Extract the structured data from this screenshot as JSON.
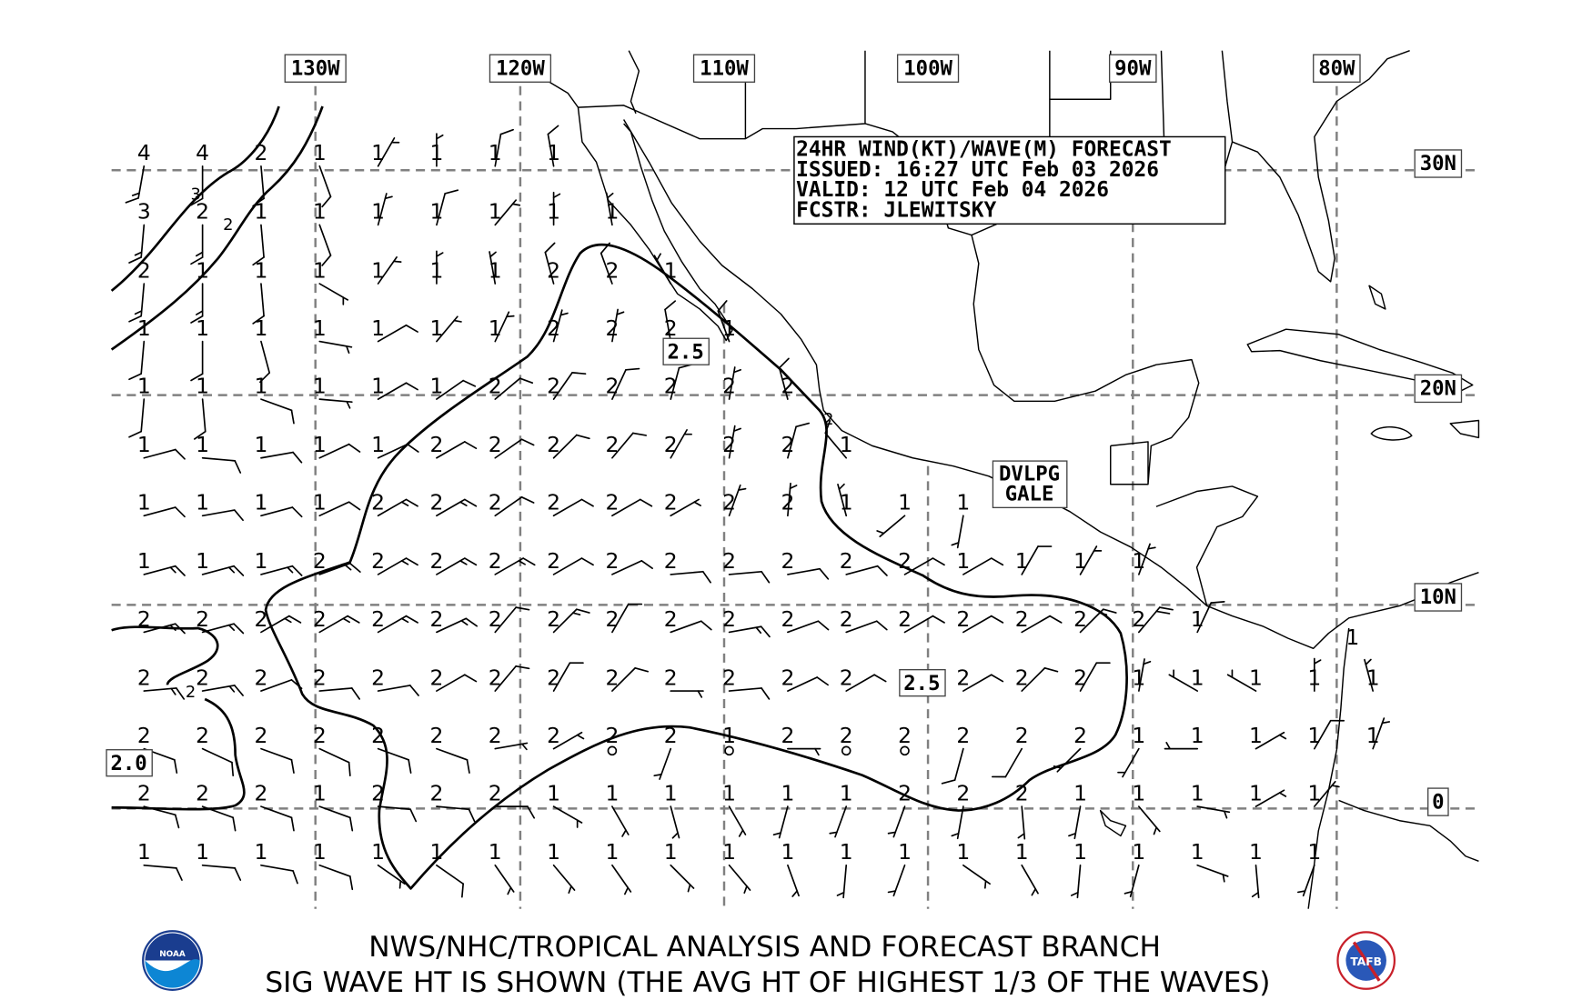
{
  "header": {
    "line1": "24HR WIND(KT)/WAVE(M) FORECAST",
    "line2": "ISSUED: 16:27 UTC Feb 03 2026",
    "line3": "VALID: 12 UTC Feb 04 2026",
    "line4": "FCSTR: JLEWITSKY"
  },
  "longitude_labels": [
    "130W",
    "120W",
    "110W",
    "100W",
    "90W",
    "80W"
  ],
  "latitude_labels": [
    "30N",
    "20N",
    "10N",
    "0"
  ],
  "contour_labels": {
    "north": "2.5",
    "central": "2.5",
    "west": "2.0",
    "small": [
      "3",
      "2",
      "2",
      "2"
    ]
  },
  "warning_label": {
    "line1": "DVLPG",
    "line2": "GALE"
  },
  "footer": {
    "line1": "NWS/NHC/TROPICAL ANALYSIS AND FORECAST BRANCH",
    "line2": "SIG WAVE HT IS SHOWN (THE AVG HT OF HIGHEST 1/3 OF THE WAVES)"
  },
  "logos": {
    "left": "NOAA",
    "right": "TAFB"
  },
  "wave_grid": {
    "unit": "m",
    "rows": [
      [
        4,
        4,
        2,
        1,
        1,
        1,
        1,
        1
      ],
      [
        3,
        2,
        1,
        1,
        1,
        1,
        1,
        1,
        1
      ],
      [
        2,
        1,
        1,
        1,
        1,
        1,
        1,
        2,
        2,
        1
      ],
      [
        1,
        1,
        1,
        1,
        1,
        1,
        1,
        2,
        2,
        2,
        1
      ],
      [
        1,
        1,
        1,
        1,
        1,
        1,
        2,
        2,
        2,
        2,
        2,
        2
      ],
      [
        1,
        1,
        1,
        1,
        1,
        2,
        2,
        2,
        2,
        2,
        2,
        2,
        1
      ],
      [
        1,
        1,
        1,
        1,
        2,
        2,
        2,
        2,
        2,
        2,
        2,
        2,
        1,
        1,
        1
      ],
      [
        1,
        1,
        1,
        2,
        2,
        2,
        2,
        2,
        2,
        2,
        2,
        2,
        2,
        2,
        1,
        1,
        1,
        1
      ],
      [
        2,
        2,
        2,
        2,
        2,
        2,
        2,
        2,
        2,
        2,
        2,
        2,
        2,
        2,
        2,
        2,
        2,
        2,
        1
      ],
      [
        2,
        2,
        2,
        2,
        2,
        2,
        2,
        2,
        2,
        2,
        2,
        2,
        2,
        null,
        2,
        2,
        2,
        1,
        1,
        1,
        1,
        1
      ],
      [
        2,
        2,
        2,
        2,
        2,
        2,
        2,
        2,
        2,
        2,
        1,
        2,
        2,
        2,
        2,
        2,
        2,
        1,
        1,
        1,
        1,
        1
      ],
      [
        2,
        2,
        2,
        1,
        2,
        2,
        2,
        1,
        1,
        1,
        1,
        1,
        1,
        2,
        2,
        2,
        1,
        1,
        1,
        1,
        1
      ],
      [
        1,
        1,
        1,
        1,
        1,
        1,
        1,
        1,
        1,
        1,
        1,
        1,
        1,
        1,
        1,
        1,
        1,
        1,
        1,
        1,
        1
      ]
    ],
    "extra": [
      {
        "value": 1,
        "row": 8,
        "col": 21
      }
    ]
  },
  "wind_grid": {
    "unit": "kt",
    "format": "[direction_from_deg, speed_kt]; speed 0 = calm",
    "rows": [
      [
        [
          190,
          15
        ],
        [
          180,
          15
        ],
        [
          175,
          10
        ],
        [
          160,
          10
        ],
        [
          30,
          5
        ],
        [
          0,
          5
        ],
        [
          10,
          10
        ],
        [
          350,
          10
        ]
      ],
      [
        [
          185,
          15
        ],
        [
          180,
          15
        ],
        [
          175,
          10
        ],
        [
          160,
          10
        ],
        [
          15,
          5
        ],
        [
          15,
          10
        ],
        [
          40,
          5
        ],
        [
          0,
          5
        ],
        [
          350,
          5
        ]
      ],
      [
        [
          185,
          15
        ],
        [
          180,
          15
        ],
        [
          175,
          10
        ],
        [
          120,
          5
        ],
        [
          35,
          5
        ],
        [
          0,
          5
        ],
        [
          350,
          5
        ],
        [
          345,
          10
        ],
        [
          340,
          10
        ],
        [
          330,
          5
        ]
      ],
      [
        [
          185,
          10
        ],
        [
          180,
          10
        ],
        [
          165,
          10
        ],
        [
          100,
          5
        ],
        [
          60,
          10
        ],
        [
          40,
          5
        ],
        [
          25,
          5
        ],
        [
          15,
          5
        ],
        [
          10,
          5
        ],
        [
          350,
          10
        ],
        [
          340,
          10
        ]
      ],
      [
        [
          185,
          10
        ],
        [
          175,
          10
        ],
        [
          110,
          10
        ],
        [
          95,
          5
        ],
        [
          60,
          10
        ],
        [
          55,
          10
        ],
        [
          50,
          10
        ],
        [
          35,
          10
        ],
        [
          25,
          10
        ],
        [
          15,
          10
        ],
        [
          10,
          5
        ],
        [
          345,
          10
        ]
      ],
      [
        [
          75,
          10
        ],
        [
          95,
          10
        ],
        [
          80,
          10
        ],
        [
          65,
          10
        ],
        [
          65,
          10
        ],
        [
          60,
          10
        ],
        [
          55,
          10
        ],
        [
          45,
          10
        ],
        [
          40,
          10
        ],
        [
          30,
          5
        ],
        [
          10,
          5
        ],
        [
          15,
          10
        ],
        [
          320,
          10
        ]
      ],
      [
        [
          75,
          10
        ],
        [
          80,
          10
        ],
        [
          75,
          10
        ],
        [
          65,
          10
        ],
        [
          60,
          15
        ],
        [
          60,
          15
        ],
        [
          55,
          10
        ],
        [
          60,
          10
        ],
        [
          60,
          10
        ],
        [
          60,
          5
        ],
        [
          20,
          5
        ],
        [
          5,
          5
        ],
        [
          345,
          5
        ],
        [
          230,
          5
        ],
        [
          190,
          5
        ]
      ],
      [
        [
          75,
          15
        ],
        [
          75,
          15
        ],
        [
          75,
          15
        ],
        [
          70,
          15
        ],
        [
          60,
          15
        ],
        [
          60,
          15
        ],
        [
          60,
          15
        ],
        [
          60,
          10
        ],
        [
          65,
          10
        ],
        [
          85,
          10
        ],
        [
          85,
          10
        ],
        [
          80,
          10
        ],
        [
          75,
          10
        ],
        [
          60,
          10
        ],
        [
          60,
          10
        ],
        [
          30,
          10
        ],
        [
          30,
          5
        ],
        [
          20,
          5
        ]
      ],
      [
        [
          75,
          15
        ],
        [
          75,
          15
        ],
        [
          60,
          15
        ],
        [
          60,
          15
        ],
        [
          60,
          15
        ],
        [
          65,
          15
        ],
        [
          40,
          10
        ],
        [
          45,
          15
        ],
        [
          30,
          10
        ],
        [
          70,
          10
        ],
        [
          80,
          15
        ],
        [
          70,
          10
        ],
        [
          70,
          10
        ],
        [
          60,
          10
        ],
        [
          60,
          10
        ],
        [
          60,
          10
        ],
        [
          45,
          15
        ],
        [
          40,
          20
        ],
        [
          25,
          10
        ]
      ],
      [
        [
          85,
          15
        ],
        [
          80,
          15
        ],
        [
          70,
          10
        ],
        [
          85,
          10
        ],
        [
          80,
          10
        ],
        [
          60,
          10
        ],
        [
          40,
          10
        ],
        [
          30,
          10
        ],
        [
          45,
          10
        ],
        [
          90,
          5
        ],
        [
          85,
          10
        ],
        [
          65,
          10
        ],
        [
          60,
          10
        ],
        [
          60,
          10
        ],
        [
          60,
          10
        ],
        [
          45,
          10
        ],
        [
          30,
          10
        ],
        [
          10,
          5
        ],
        [
          300,
          5
        ],
        [
          300,
          5
        ],
        [
          0,
          5
        ],
        [
          345,
          5
        ]
      ],
      [
        [
          110,
          10
        ],
        [
          115,
          10
        ],
        [
          110,
          10
        ],
        [
          115,
          10
        ],
        [
          110,
          10
        ],
        [
          110,
          10
        ],
        [
          80,
          5
        ],
        [
          60,
          5
        ],
        [
          0,
          0
        ],
        [
          200,
          5
        ],
        [
          0,
          0
        ],
        [
          90,
          5
        ],
        [
          0,
          0
        ],
        [
          0,
          0
        ],
        [
          195,
          10
        ],
        [
          210,
          10
        ],
        [
          225,
          5
        ],
        [
          210,
          5
        ],
        [
          270,
          5
        ],
        [
          60,
          5
        ],
        [
          30,
          10
        ],
        [
          20,
          5
        ]
      ],
      [
        [
          105,
          10
        ],
        [
          110,
          10
        ],
        [
          110,
          10
        ],
        [
          110,
          10
        ],
        [
          95,
          10
        ],
        [
          95,
          10
        ],
        [
          90,
          10
        ],
        [
          120,
          5
        ],
        [
          150,
          5
        ],
        [
          165,
          5
        ],
        [
          150,
          5
        ],
        [
          195,
          5
        ],
        [
          200,
          5
        ],
        [
          200,
          5
        ],
        [
          190,
          5
        ],
        [
          175,
          5
        ],
        [
          190,
          5
        ],
        [
          140,
          5
        ],
        [
          100,
          5
        ],
        [
          60,
          5
        ],
        [
          40,
          5
        ]
      ],
      [
        [
          95,
          10
        ],
        [
          95,
          10
        ],
        [
          100,
          10
        ],
        [
          110,
          10
        ],
        [
          125,
          5
        ],
        [
          125,
          10
        ],
        [
          145,
          5
        ],
        [
          140,
          5
        ],
        [
          145,
          5
        ],
        [
          135,
          5
        ],
        [
          140,
          5
        ],
        [
          160,
          5
        ],
        [
          185,
          5
        ],
        [
          200,
          5
        ],
        [
          125,
          5
        ],
        [
          150,
          5
        ],
        [
          185,
          5
        ],
        [
          195,
          5
        ],
        [
          110,
          5
        ],
        [
          175,
          5
        ],
        [
          200,
          5
        ]
      ]
    ]
  }
}
